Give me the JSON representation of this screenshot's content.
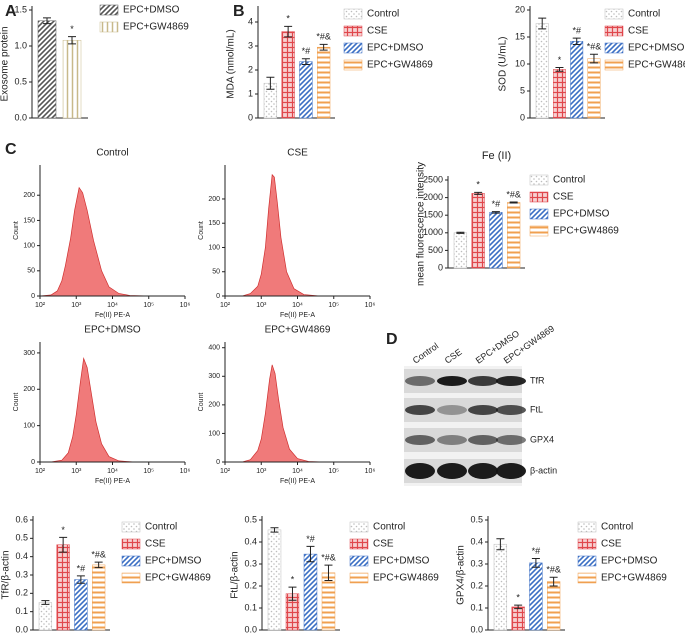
{
  "panels": [
    "A",
    "B",
    "C",
    "D"
  ],
  "blot": {
    "lanes": [
      "Control",
      "CSE",
      "EPC+DMSO",
      "EPC+GW4869"
    ],
    "proteins": [
      "TfR",
      "FtL",
      "GPX4",
      "β-actin"
    ]
  },
  "chart_data": [
    {
      "type": "bar",
      "ylabel": "Exosome protein",
      "categories": [
        "EPC+DMSO",
        "EPC+GW4869"
      ],
      "values": [
        1.35,
        1.08
      ],
      "errors": [
        0.04,
        0.05
      ],
      "annotations": [
        null,
        "*"
      ],
      "colors": [
        "#555555",
        "#c8b98a"
      ],
      "ylim": [
        0,
        1.5
      ],
      "yticks": [
        {
          "value": 0,
          "label": "0.0"
        },
        0.5,
        {
          "value": 1,
          "label": "1.0"
        },
        1.5
      ]
    },
    {
      "type": "bar",
      "ylabel": "MDA (nmol/mL)",
      "categories": [
        "Control",
        "CSE",
        "EPC+DMSO",
        "EPC+GW4869"
      ],
      "values": [
        1.45,
        3.6,
        2.35,
        2.95
      ],
      "errors": [
        0.25,
        0.22,
        0.12,
        0.12
      ],
      "annotations": [
        null,
        "*",
        "*#",
        "*#&"
      ],
      "colors": [
        "#bdbdbd",
        "#e0474c",
        "#3b6fc4",
        "#f0a050"
      ],
      "ylim": [
        0,
        4.5
      ],
      "yticks": [
        0,
        1,
        2,
        3,
        4
      ]
    },
    {
      "type": "bar",
      "ylabel": "SOD (U/mL)",
      "categories": [
        "Control",
        "CSE",
        "EPC+DMSO",
        "EPC+GW4869"
      ],
      "values": [
        17.5,
        9,
        14.2,
        11
      ],
      "errors": [
        1.0,
        0.35,
        0.6,
        0.8
      ],
      "annotations": [
        null,
        "*",
        "*#",
        "*#&"
      ],
      "colors": [
        "#bdbdbd",
        "#e0474c",
        "#3b6fc4",
        "#f0a050"
      ],
      "ylim": [
        0,
        20
      ],
      "yticks": [
        0,
        5,
        10,
        15,
        20
      ]
    },
    {
      "type": "area",
      "title": "Control",
      "xlabel": "Fe(II) PE-A",
      "ylabel": "Count",
      "color": "#f07a7a",
      "log_x": true,
      "x": [
        100,
        200,
        300,
        400,
        500,
        700,
        900,
        1200,
        1500,
        2000,
        3000,
        5000,
        8000,
        15000,
        30000,
        100000
      ],
      "values": [
        0,
        2,
        10,
        30,
        60,
        115,
        170,
        215,
        205,
        170,
        110,
        50,
        18,
        5,
        1,
        0
      ],
      "xlim": [
        100,
        1000000
      ],
      "xticks": [
        {
          "value": 100,
          "label": "10²"
        },
        {
          "value": 1000,
          "label": "10³"
        },
        {
          "value": 10000,
          "label": "10⁴"
        },
        {
          "value": 100000,
          "label": "10⁵"
        },
        {
          "value": 1000000,
          "label": "10⁶"
        }
      ],
      "ylim": [
        0,
        260
      ],
      "yticks": [
        0,
        50,
        100,
        150,
        200
      ]
    },
    {
      "type": "area",
      "title": "CSE",
      "xlabel": "Fe(II) PE-A",
      "ylabel": "Count",
      "color": "#f07a7a",
      "log_x": true,
      "x": [
        300,
        500,
        800,
        1000,
        1300,
        1600,
        2000,
        2300,
        2800,
        3500,
        5000,
        8000,
        15000,
        40000
      ],
      "values": [
        0,
        5,
        20,
        45,
        100,
        180,
        250,
        245,
        190,
        120,
        50,
        15,
        3,
        0
      ],
      "xlim": [
        100,
        1000000
      ],
      "xticks": [
        {
          "value": 100,
          "label": "10²"
        },
        {
          "value": 1000,
          "label": "10³"
        },
        {
          "value": 10000,
          "label": "10⁴"
        },
        {
          "value": 100000,
          "label": "10⁵"
        },
        {
          "value": 1000000,
          "label": "10⁶"
        }
      ],
      "ylim": [
        0,
        270
      ],
      "yticks": [
        0,
        50,
        100,
        150,
        200
      ]
    },
    {
      "type": "area",
      "title": "EPC+DMSO",
      "xlabel": "Fe(II) PE-A",
      "ylabel": "Count",
      "color": "#f07a7a",
      "log_x": true,
      "x": [
        200,
        400,
        600,
        800,
        1000,
        1300,
        1600,
        2000,
        2500,
        3500,
        5000,
        8000,
        15000,
        40000
      ],
      "values": [
        0,
        5,
        25,
        70,
        130,
        220,
        285,
        260,
        200,
        110,
        50,
        15,
        3,
        0
      ],
      "xlim": [
        100,
        1000000
      ],
      "xticks": [
        {
          "value": 100,
          "label": "10²"
        },
        {
          "value": 1000,
          "label": "10³"
        },
        {
          "value": 10000,
          "label": "10⁴"
        },
        {
          "value": 100000,
          "label": "10⁵"
        },
        {
          "value": 1000000,
          "label": "10⁶"
        }
      ],
      "ylim": [
        0,
        330
      ],
      "yticks": [
        0,
        100,
        200,
        300
      ]
    },
    {
      "type": "area",
      "title": "EPC+GW4869",
      "xlabel": "Fe(II) PE-A",
      "ylabel": "Count",
      "color": "#f07a7a",
      "log_x": true,
      "x": [
        300,
        500,
        800,
        1000,
        1300,
        1700,
        2000,
        2400,
        3000,
        4000,
        6000,
        10000,
        20000,
        50000
      ],
      "values": [
        0,
        8,
        40,
        80,
        170,
        290,
        340,
        310,
        220,
        120,
        45,
        12,
        2,
        0
      ],
      "xlim": [
        100,
        1000000
      ],
      "xticks": [
        {
          "value": 100,
          "label": "10²"
        },
        {
          "value": 1000,
          "label": "10³"
        },
        {
          "value": 10000,
          "label": "10⁴"
        },
        {
          "value": 100000,
          "label": "10⁵"
        },
        {
          "value": 1000000,
          "label": "10⁶"
        }
      ],
      "ylim": [
        0,
        420
      ],
      "yticks": [
        0,
        100,
        200,
        300,
        400
      ]
    },
    {
      "type": "bar",
      "title": "Fe (II)",
      "ylabel": "mean fluorescence intensity",
      "categories": [
        "Control",
        "CSE",
        "EPC+DMSO",
        "EPC+GW4869"
      ],
      "values": [
        1000,
        2120,
        1580,
        1860
      ],
      "errors": [
        15,
        30,
        20,
        15
      ],
      "annotations": [
        null,
        "*",
        "*#",
        "*#&"
      ],
      "colors": [
        "#bdbdbd",
        "#e0474c",
        "#3b6fc4",
        "#f0a050"
      ],
      "ylim": [
        0,
        2500
      ],
      "yticks": [
        0,
        500,
        1000,
        1500,
        2000,
        2500
      ]
    },
    {
      "type": "bar",
      "ylabel": "TfR/β-actin",
      "categories": [
        "Control",
        "CSE",
        "EPC+DMSO",
        "EPC+GW4869"
      ],
      "values": [
        0.15,
        0.465,
        0.275,
        0.355
      ],
      "errors": [
        0.01,
        0.04,
        0.02,
        0.015
      ],
      "annotations": [
        null,
        "*",
        "*#",
        "*#&"
      ],
      "colors": [
        "#bdbdbd",
        "#e0474c",
        "#3b6fc4",
        "#f0a050"
      ],
      "ylim": [
        0,
        0.6
      ],
      "yticks": [
        {
          "value": 0,
          "label": "0.0"
        },
        0.1,
        0.2,
        0.3,
        0.4,
        0.5,
        0.6
      ]
    },
    {
      "type": "bar",
      "ylabel": "FtL/β-actin",
      "categories": [
        "Control",
        "CSE",
        "EPC+DMSO",
        "EPC+GW4869"
      ],
      "values": [
        0.455,
        0.165,
        0.345,
        0.26
      ],
      "errors": [
        0.01,
        0.03,
        0.035,
        0.035
      ],
      "annotations": [
        null,
        "*",
        "*#",
        "*#&"
      ],
      "colors": [
        "#bdbdbd",
        "#e0474c",
        "#3b6fc4",
        "#f0a050"
      ],
      "ylim": [
        0,
        0.5
      ],
      "yticks": [
        {
          "value": 0,
          "label": "0.0"
        },
        0.1,
        0.2,
        0.3,
        0.4,
        0.5
      ]
    },
    {
      "type": "bar",
      "ylabel": "GPX4/β-actin",
      "categories": [
        "Control",
        "CSE",
        "EPC+DMSO",
        "EPC+GW4869"
      ],
      "values": [
        0.39,
        0.105,
        0.305,
        0.22
      ],
      "errors": [
        0.025,
        0.008,
        0.02,
        0.02
      ],
      "annotations": [
        null,
        "*",
        "*#",
        "*#&"
      ],
      "colors": [
        "#bdbdbd",
        "#e0474c",
        "#3b6fc4",
        "#f0a050"
      ],
      "ylim": [
        0,
        0.5
      ],
      "yticks": [
        {
          "value": 0,
          "label": "0.0"
        },
        0.1,
        0.2,
        0.3,
        0.4,
        0.5
      ]
    }
  ]
}
